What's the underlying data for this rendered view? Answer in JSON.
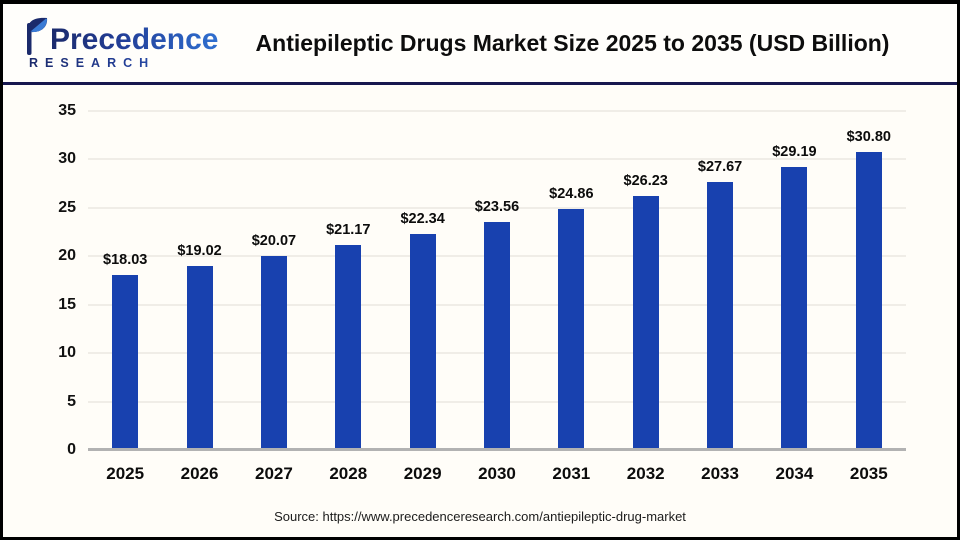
{
  "header": {
    "logo": {
      "name": "Precedence",
      "subtitle": "RESEARCH"
    },
    "title": "Antiepileptic Drugs Market Size 2025 to 2035 (USD Billion)"
  },
  "chart_data": {
    "type": "bar",
    "title": "Antiepileptic Drugs Market Size 2025 to 2035 (USD Billion)",
    "categories": [
      "2025",
      "2026",
      "2027",
      "2028",
      "2029",
      "2030",
      "2031",
      "2032",
      "2033",
      "2034",
      "2035"
    ],
    "values": [
      18.03,
      19.02,
      20.07,
      21.17,
      22.34,
      23.56,
      24.86,
      26.23,
      27.67,
      29.19,
      30.8
    ],
    "data_labels": [
      "$18.03",
      "$19.02",
      "$20.07",
      "$21.17",
      "$22.34",
      "$23.56",
      "$24.86",
      "$26.23",
      "$27.67",
      "$29.19",
      "$30.80"
    ],
    "xlabel": "",
    "ylabel": "",
    "ylim": [
      0,
      35
    ],
    "yticks": [
      0,
      5,
      10,
      15,
      20,
      25,
      30,
      35
    ],
    "grid": true,
    "legend": false,
    "bar_color": "#1841af"
  },
  "footer": {
    "source": "Source: https://www.precedenceresearch.com/antiepileptic-drug-market"
  }
}
